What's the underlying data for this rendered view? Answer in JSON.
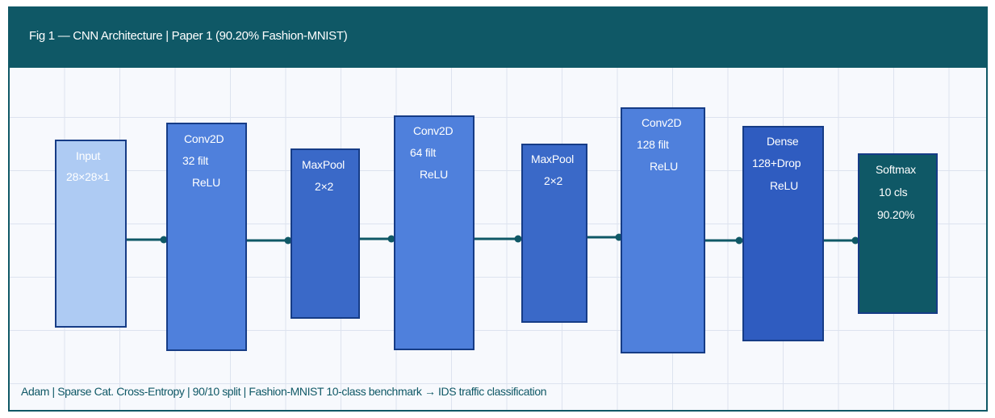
{
  "figure": {
    "title": "Fig 1 — CNN Architecture | Paper 1 (90.20% Fashion-MNIST)",
    "footer": "Adam | Sparse Cat. Cross-Entropy | 90/10 split | Fashion-MNIST 10-class benchmark → IDS traffic classification"
  },
  "colors": {
    "header": "#0f5866",
    "input_fill": "#aecbf3",
    "conv_fill": "#4f80dc",
    "pool_fill": "#3a69c8",
    "dense_fill": "#2f5cc0",
    "softmax_fill": "#0f5866",
    "block_border": "#163c86",
    "connector": "#0f5866"
  },
  "layers": [
    {
      "id": "input",
      "lines": [
        "Input",
        "28×28×1"
      ]
    },
    {
      "id": "conv1",
      "lines": [
        "Conv2D",
        "32 filt",
        "ReLU"
      ]
    },
    {
      "id": "pool1",
      "lines": [
        "MaxPool",
        "2×2"
      ]
    },
    {
      "id": "conv2",
      "lines": [
        "Conv2D",
        "64 filt",
        "ReLU"
      ]
    },
    {
      "id": "pool2",
      "lines": [
        "MaxPool",
        "2×2"
      ]
    },
    {
      "id": "conv3",
      "lines": [
        "Conv2D",
        "128 filt",
        "ReLU"
      ]
    },
    {
      "id": "dense",
      "lines": [
        "Dense",
        "128+Drop",
        "ReLU"
      ]
    },
    {
      "id": "softmax",
      "lines": [
        "Softmax",
        "10 cls",
        "90.20%"
      ]
    }
  ]
}
